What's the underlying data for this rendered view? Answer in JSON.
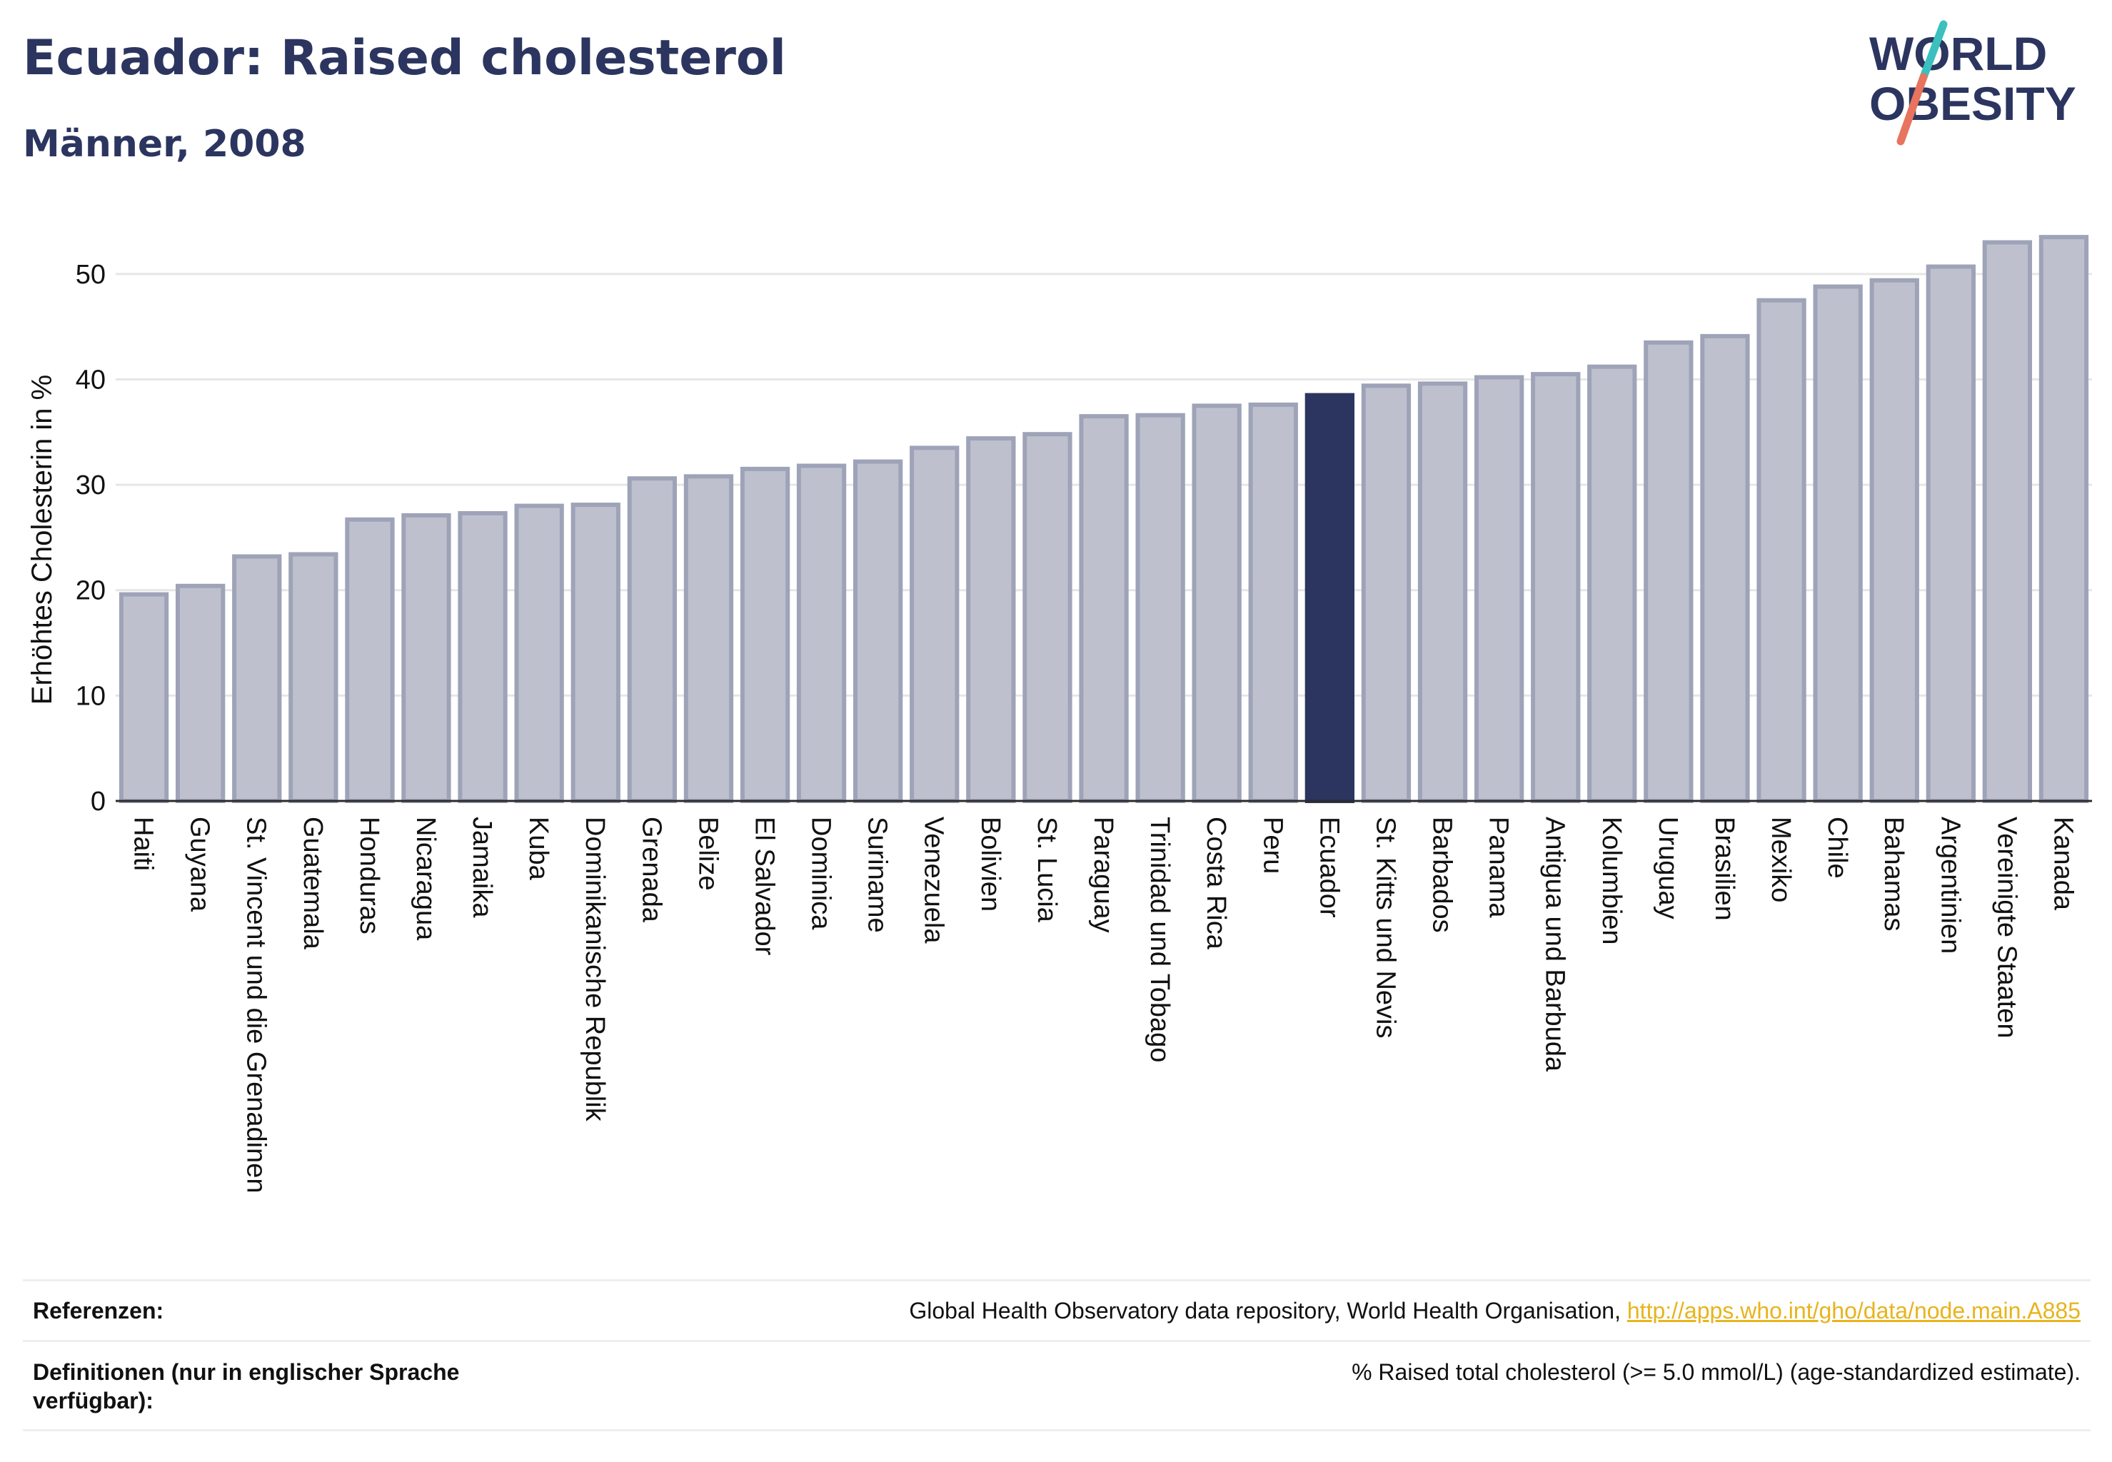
{
  "header": {
    "title": "Ecuador: Raised cholesterol",
    "subtitle": "Männer, 2008"
  },
  "logo": {
    "text_line1": "WORLD",
    "text_line2": "OBESITY",
    "colors": {
      "text": "#2b355f",
      "slash_top": "#3bbfbf",
      "slash_bottom": "#e8735f"
    }
  },
  "colors": {
    "bar_fill": "#bec1cd",
    "bar_stroke": "#9ea3b8",
    "highlight_fill": "#2b355f",
    "grid": "#e6e6e6",
    "axis_text": "#111111",
    "link": "#e7b41d"
  },
  "chart_data": {
    "type": "bar",
    "ylabel": "Erhöhtes Cholesterin in %",
    "xlabel": "",
    "ylim": [
      0,
      55
    ],
    "yticks": [
      0,
      10,
      20,
      30,
      40,
      50
    ],
    "grid": true,
    "highlight": "Ecuador",
    "categories": [
      "Haiti",
      "Guyana",
      "St. Vincent und die Grenadinen",
      "Guatemala",
      "Honduras",
      "Nicaragua",
      "Jamaika",
      "Kuba",
      "Dominikanische Republik",
      "Grenada",
      "Belize",
      "El Salvador",
      "Dominica",
      "Suriname",
      "Venezuela",
      "Bolivien",
      "St. Lucia",
      "Paraguay",
      "Trinidad und Tobago",
      "Costa Rica",
      "Peru",
      "Ecuador",
      "St. Kitts und Nevis",
      "Barbados",
      "Panama",
      "Antigua und Barbuda",
      "Kolumbien",
      "Uruguay",
      "Brasilien",
      "Mexiko",
      "Chile",
      "Bahamas",
      "Argentinien",
      "Vereinigte Staaten",
      "Kanada"
    ],
    "values": [
      19.6,
      20.4,
      23.2,
      23.4,
      26.7,
      27.1,
      27.3,
      28.0,
      28.1,
      30.6,
      30.8,
      31.5,
      31.8,
      32.2,
      33.5,
      34.4,
      34.8,
      36.5,
      36.6,
      37.5,
      37.6,
      38.5,
      39.4,
      39.6,
      40.2,
      40.5,
      41.2,
      43.5,
      44.1,
      47.5,
      48.8,
      49.4,
      50.7,
      53.0,
      53.5
    ]
  },
  "references": {
    "label": "Referenzen:",
    "text": "Global Health Observatory data repository, World Health Organisation, ",
    "link": "http://apps.who.int/gho/data/node.main.A885"
  },
  "definitions": {
    "label": "Definitionen (nur in englischer Sprache verfügbar):",
    "text": "% Raised total cholesterol (>= 5.0 mmol/L) (age-standardized estimate)."
  }
}
